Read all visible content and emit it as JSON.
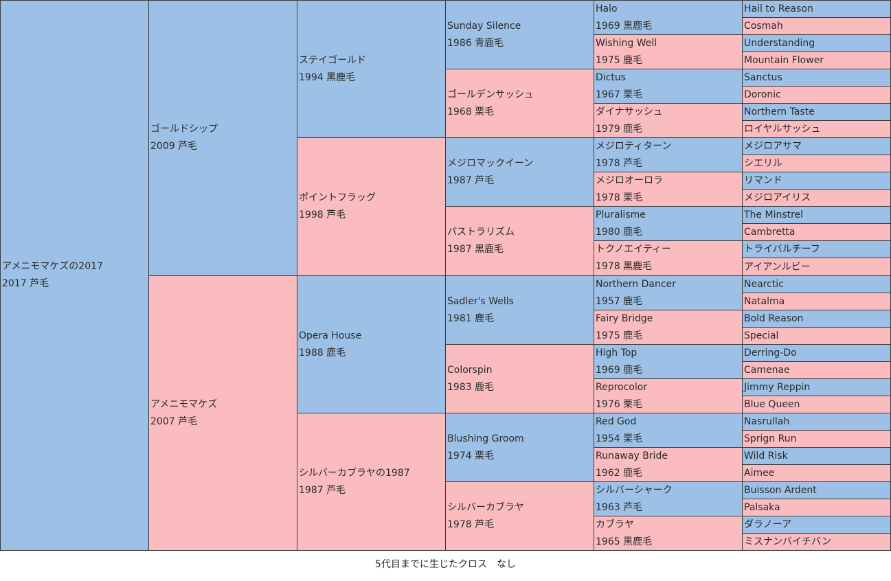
{
  "gen1": [
    {
      "name": "アメニモマケズの2017",
      "info": "2017 芦毛",
      "sex": "m"
    }
  ],
  "gen2": [
    {
      "name": "ゴールドシップ",
      "info": "2009 芦毛",
      "sex": "m"
    },
    {
      "name": "アメニモマケズ",
      "info": "2007 芦毛",
      "sex": "f"
    }
  ],
  "gen3": [
    {
      "name": "ステイゴールド",
      "info": "1994 黒鹿毛",
      "sex": "m"
    },
    {
      "name": "ポイントフラッグ",
      "info": "1998 芦毛",
      "sex": "f"
    },
    {
      "name": "Opera House",
      "info": "1988 鹿毛",
      "sex": "m"
    },
    {
      "name": "シルバーカブラヤの1987",
      "info": "1987 芦毛",
      "sex": "f"
    }
  ],
  "gen4": [
    {
      "name": "Sunday Silence",
      "info": "1986 青鹿毛",
      "sex": "m"
    },
    {
      "name": "ゴールデンサッシュ",
      "info": "1968 栗毛",
      "sex": "f"
    },
    {
      "name": "メジロマックイーン",
      "info": "1987 芦毛",
      "sex": "m"
    },
    {
      "name": "パストラリズム",
      "info": "1987 黒鹿毛",
      "sex": "f"
    },
    {
      "name": "Sadler's Wells",
      "info": "1981 鹿毛",
      "sex": "m"
    },
    {
      "name": "Colorspin",
      "info": "1983 鹿毛",
      "sex": "f"
    },
    {
      "name": "Blushing Groom",
      "info": "1974 栗毛",
      "sex": "m"
    },
    {
      "name": "シルバーカブラヤ",
      "info": "1978 芦毛",
      "sex": "f"
    }
  ],
  "gen5": [
    {
      "name": "Halo",
      "info": "1969 黒鹿毛",
      "sex": "m"
    },
    {
      "name": "Wishing Well",
      "info": "1975 鹿毛",
      "sex": "f"
    },
    {
      "name": "Dictus",
      "info": "1967 栗毛",
      "sex": "m"
    },
    {
      "name": "ダイナサッシュ",
      "info": "1979 鹿毛",
      "sex": "f"
    },
    {
      "name": "メジロティターン",
      "info": "1978 芦毛",
      "sex": "m"
    },
    {
      "name": "メジロオーロラ",
      "info": "1978 栗毛",
      "sex": "f"
    },
    {
      "name": "Pluralisme",
      "info": "1980 鹿毛",
      "sex": "m"
    },
    {
      "name": "トクノエイティー",
      "info": "1978 黒鹿毛",
      "sex": "f"
    },
    {
      "name": "Northern Dancer",
      "info": "1957 鹿毛",
      "sex": "m"
    },
    {
      "name": "Fairy Bridge",
      "info": "1975 鹿毛",
      "sex": "f"
    },
    {
      "name": "High Top",
      "info": "1969 鹿毛",
      "sex": "m"
    },
    {
      "name": "Reprocolor",
      "info": "1976 栗毛",
      "sex": "f"
    },
    {
      "name": "Red God",
      "info": "1954 栗毛",
      "sex": "m"
    },
    {
      "name": "Runaway Bride",
      "info": "1962 鹿毛",
      "sex": "f"
    },
    {
      "name": "シルバーシャーク",
      "info": "1963 芦毛",
      "sex": "m"
    },
    {
      "name": "カブラヤ",
      "info": "1965 黒鹿毛",
      "sex": "f"
    }
  ],
  "gen6": [
    {
      "name": "Hail to Reason",
      "sex": "m"
    },
    {
      "name": "Cosmah",
      "sex": "f"
    },
    {
      "name": "Understanding",
      "sex": "m"
    },
    {
      "name": "Mountain Flower",
      "sex": "f"
    },
    {
      "name": "Sanctus",
      "sex": "m"
    },
    {
      "name": "Doronic",
      "sex": "f"
    },
    {
      "name": "Northern Taste",
      "sex": "m"
    },
    {
      "name": "ロイヤルサッシュ",
      "sex": "f"
    },
    {
      "name": "メジロアサマ",
      "sex": "m"
    },
    {
      "name": "シエリル",
      "sex": "f"
    },
    {
      "name": "リマンド",
      "sex": "m"
    },
    {
      "name": "メジロアイリス",
      "sex": "f"
    },
    {
      "name": "The Minstrel",
      "sex": "m"
    },
    {
      "name": "Cambretta",
      "sex": "f"
    },
    {
      "name": "トライバルチーフ",
      "sex": "m"
    },
    {
      "name": "アイアンルビー",
      "sex": "f"
    },
    {
      "name": "Nearctic",
      "sex": "m"
    },
    {
      "name": "Natalma",
      "sex": "f"
    },
    {
      "name": "Bold Reason",
      "sex": "m"
    },
    {
      "name": "Special",
      "sex": "f"
    },
    {
      "name": "Derring-Do",
      "sex": "m"
    },
    {
      "name": "Camenae",
      "sex": "f"
    },
    {
      "name": "Jimmy Reppin",
      "sex": "m"
    },
    {
      "name": "Blue Queen",
      "sex": "f"
    },
    {
      "name": "Nasrullah",
      "sex": "m"
    },
    {
      "name": "Sprign Run",
      "sex": "f"
    },
    {
      "name": "Wild Risk",
      "sex": "m"
    },
    {
      "name": "Aimee",
      "sex": "f"
    },
    {
      "name": "Buisson Ardent",
      "sex": "m"
    },
    {
      "name": "Palsaka",
      "sex": "f"
    },
    {
      "name": "ダラノーア",
      "sex": "m"
    },
    {
      "name": "ミスナンバイチバン",
      "sex": "f"
    }
  ],
  "colors": {
    "male": "#9dc1e6",
    "female": "#fbbcc0",
    "border": "#3a3a3a"
  },
  "footer": {
    "cross_note": "5代目までに生じたクロス　なし"
  }
}
